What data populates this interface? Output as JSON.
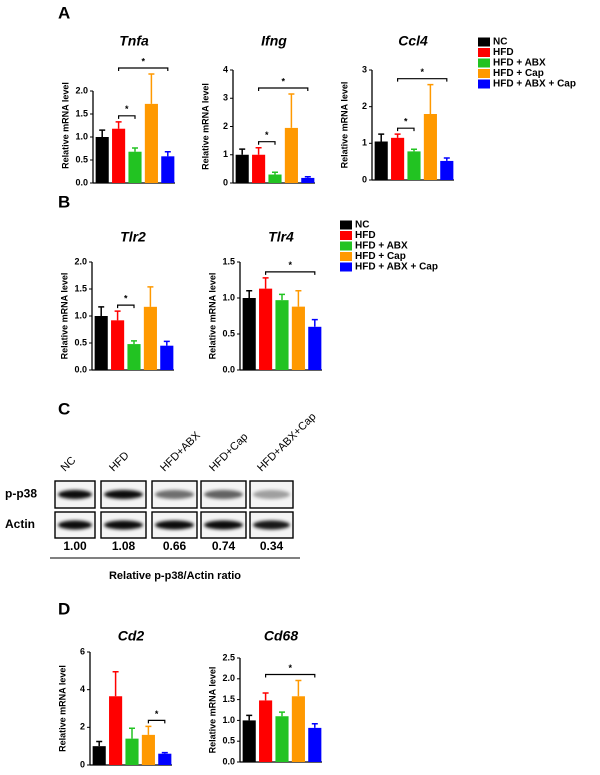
{
  "panel_labels": [
    "A",
    "B",
    "C",
    "D"
  ],
  "chart_data": [
    {
      "type": "bar",
      "title": "Tnfa",
      "ylabel": "Relative mRNA level",
      "ylim": [
        0,
        2.5
      ],
      "yticks": [
        {
          "value": 0,
          "label": "0.0"
        },
        0.5,
        {
          "value": 1,
          "label": "1.0"
        },
        1.5,
        {
          "value": 2,
          "label": "2.0"
        }
      ],
      "series": [
        {
          "name": "NC",
          "color": "#000000",
          "values": [
            1.0
          ],
          "errors": [
            0.15
          ]
        },
        {
          "name": "HFD",
          "color": "#ff0000",
          "values": [
            1.18
          ],
          "errors": [
            0.15
          ]
        },
        {
          "name": "HFD + ABX",
          "color": "#22c322",
          "values": [
            0.68
          ],
          "errors": [
            0.08
          ]
        },
        {
          "name": "HFD + Cap",
          "color": "#ff9900",
          "values": [
            1.72
          ],
          "errors": [
            0.65
          ]
        },
        {
          "name": "HFD + ABX + Cap",
          "color": "#0000ff",
          "values": [
            0.58
          ],
          "errors": [
            0.1
          ]
        }
      ],
      "significance": [
        {
          "groups": [
            "HFD",
            "HFD + ABX"
          ],
          "label": "*"
        },
        {
          "groups": [
            "HFD",
            "HFD + ABX + Cap"
          ],
          "label": "*"
        }
      ],
      "legend": true
    },
    {
      "type": "bar",
      "title": "Ifng",
      "ylabel": "Relative mRNA level",
      "ylim": [
        0,
        4
      ],
      "yticks": [
        0,
        1,
        2,
        3,
        4
      ],
      "series": [
        {
          "name": "NC",
          "color": "#000000",
          "values": [
            1.0
          ],
          "errors": [
            0.2
          ]
        },
        {
          "name": "HFD",
          "color": "#ff0000",
          "values": [
            1.0
          ],
          "errors": [
            0.25
          ]
        },
        {
          "name": "HFD + ABX",
          "color": "#22c322",
          "values": [
            0.3
          ],
          "errors": [
            0.08
          ]
        },
        {
          "name": "HFD + Cap",
          "color": "#ff9900",
          "values": [
            1.95
          ],
          "errors": [
            1.2
          ]
        },
        {
          "name": "HFD + ABX + Cap",
          "color": "#0000ff",
          "values": [
            0.18
          ],
          "errors": [
            0.04
          ]
        }
      ],
      "significance": [
        {
          "groups": [
            "HFD",
            "HFD + ABX"
          ],
          "label": "*"
        },
        {
          "groups": [
            "HFD",
            "HFD + ABX + Cap"
          ],
          "label": "*"
        }
      ],
      "legend": false
    },
    {
      "type": "bar",
      "title": "Ccl4",
      "ylabel": "Relative mRNA level",
      "ylim": [
        0,
        3
      ],
      "yticks": [
        0,
        1,
        2,
        3
      ],
      "series": [
        {
          "name": "NC",
          "color": "#000000",
          "values": [
            1.05
          ],
          "errors": [
            0.2
          ]
        },
        {
          "name": "HFD",
          "color": "#ff0000",
          "values": [
            1.15
          ],
          "errors": [
            0.1
          ]
        },
        {
          "name": "HFD + ABX",
          "color": "#22c322",
          "values": [
            0.78
          ],
          "errors": [
            0.06
          ]
        },
        {
          "name": "HFD + Cap",
          "color": "#ff9900",
          "values": [
            1.8
          ],
          "errors": [
            0.8
          ]
        },
        {
          "name": "HFD + ABX + Cap",
          "color": "#0000ff",
          "values": [
            0.52
          ],
          "errors": [
            0.08
          ]
        }
      ],
      "significance": [
        {
          "groups": [
            "HFD",
            "HFD + ABX"
          ],
          "label": "*"
        },
        {
          "groups": [
            "HFD",
            "HFD + ABX + Cap"
          ],
          "label": "*"
        }
      ],
      "legend": false
    },
    {
      "type": "bar",
      "title": "Tlr2",
      "ylabel": "Relative mRNA level",
      "ylim": [
        0,
        2
      ],
      "yticks": [
        {
          "value": 0,
          "label": "0.0"
        },
        0.5,
        {
          "value": 1,
          "label": "1.0"
        },
        1.5,
        {
          "value": 2,
          "label": "2.0"
        }
      ],
      "series": [
        {
          "name": "NC",
          "color": "#000000",
          "values": [
            1.0
          ],
          "errors": [
            0.17
          ]
        },
        {
          "name": "HFD",
          "color": "#ff0000",
          "values": [
            0.92
          ],
          "errors": [
            0.17
          ]
        },
        {
          "name": "HFD + ABX",
          "color": "#22c322",
          "values": [
            0.48
          ],
          "errors": [
            0.06
          ]
        },
        {
          "name": "HFD + Cap",
          "color": "#ff9900",
          "values": [
            1.17
          ],
          "errors": [
            0.37
          ]
        },
        {
          "name": "HFD + ABX + Cap",
          "color": "#0000ff",
          "values": [
            0.45
          ],
          "errors": [
            0.08
          ]
        }
      ],
      "significance": [
        {
          "groups": [
            "HFD",
            "HFD + ABX"
          ],
          "label": "*"
        }
      ],
      "legend": true
    },
    {
      "type": "bar",
      "title": "Tlr4",
      "ylabel": "Relative mRNA level",
      "ylim": [
        0,
        1.5
      ],
      "yticks": [
        {
          "value": 0,
          "label": "0.0"
        },
        0.5,
        {
          "value": 1,
          "label": "1.0"
        },
        1.5
      ],
      "series": [
        {
          "name": "NC",
          "color": "#000000",
          "values": [
            1.0
          ],
          "errors": [
            0.1
          ]
        },
        {
          "name": "HFD",
          "color": "#ff0000",
          "values": [
            1.13
          ],
          "errors": [
            0.15
          ]
        },
        {
          "name": "HFD + ABX",
          "color": "#22c322",
          "values": [
            0.97
          ],
          "errors": [
            0.08
          ]
        },
        {
          "name": "HFD + Cap",
          "color": "#ff9900",
          "values": [
            0.88
          ],
          "errors": [
            0.22
          ]
        },
        {
          "name": "HFD + ABX + Cap",
          "color": "#0000ff",
          "values": [
            0.6
          ],
          "errors": [
            0.1
          ]
        }
      ],
      "significance": [
        {
          "groups": [
            "HFD",
            "HFD + ABX + Cap"
          ],
          "label": "*"
        }
      ],
      "legend": false
    },
    {
      "type": "bar",
      "title": "Cd2",
      "ylabel": "Relative mRNA level",
      "ylim": [
        0,
        6
      ],
      "yticks": [
        0,
        2,
        4,
        6
      ],
      "series": [
        {
          "name": "NC",
          "color": "#000000",
          "values": [
            1.0
          ],
          "errors": [
            0.25
          ]
        },
        {
          "name": "HFD",
          "color": "#ff0000",
          "values": [
            3.65
          ],
          "errors": [
            1.3
          ]
        },
        {
          "name": "HFD + ABX",
          "color": "#22c322",
          "values": [
            1.4
          ],
          "errors": [
            0.55
          ]
        },
        {
          "name": "HFD + Cap",
          "color": "#ff9900",
          "values": [
            1.6
          ],
          "errors": [
            0.45
          ]
        },
        {
          "name": "HFD + ABX + Cap",
          "color": "#0000ff",
          "values": [
            0.6
          ],
          "errors": [
            0.06
          ]
        }
      ],
      "significance": [
        {
          "groups": [
            "HFD + Cap",
            "HFD + ABX + Cap"
          ],
          "label": "*"
        }
      ],
      "legend": false
    },
    {
      "type": "bar",
      "title": "Cd68",
      "ylabel": "Relative mRNA level",
      "ylim": [
        0,
        2.5
      ],
      "yticks": [
        {
          "value": 0,
          "label": "0.0"
        },
        0.5,
        {
          "value": 1,
          "label": "1.0"
        },
        1.5,
        {
          "value": 2,
          "label": "2.0"
        },
        2.5
      ],
      "series": [
        {
          "name": "NC",
          "color": "#000000",
          "values": [
            1.0
          ],
          "errors": [
            0.12
          ]
        },
        {
          "name": "HFD",
          "color": "#ff0000",
          "values": [
            1.48
          ],
          "errors": [
            0.18
          ]
        },
        {
          "name": "HFD + ABX",
          "color": "#22c322",
          "values": [
            1.1
          ],
          "errors": [
            0.1
          ]
        },
        {
          "name": "HFD + Cap",
          "color": "#ff9900",
          "values": [
            1.58
          ],
          "errors": [
            0.38
          ]
        },
        {
          "name": "HFD + ABX + Cap",
          "color": "#0000ff",
          "values": [
            0.82
          ],
          "errors": [
            0.1
          ]
        }
      ],
      "significance": [
        {
          "groups": [
            "HFD",
            "HFD + ABX + Cap"
          ],
          "label": "*"
        }
      ],
      "legend": true
    }
  ],
  "blot": {
    "lanes": [
      "NC",
      "HFD",
      "HFD+ABX",
      "HFD+Cap",
      "HFD+ABX+Cap"
    ],
    "rows": [
      "p-p38",
      "Actin"
    ],
    "ratios": [
      "1.00",
      "1.08",
      "0.66",
      "0.74",
      "0.34"
    ],
    "caption": "Relative p-p38/Actin ratio"
  }
}
